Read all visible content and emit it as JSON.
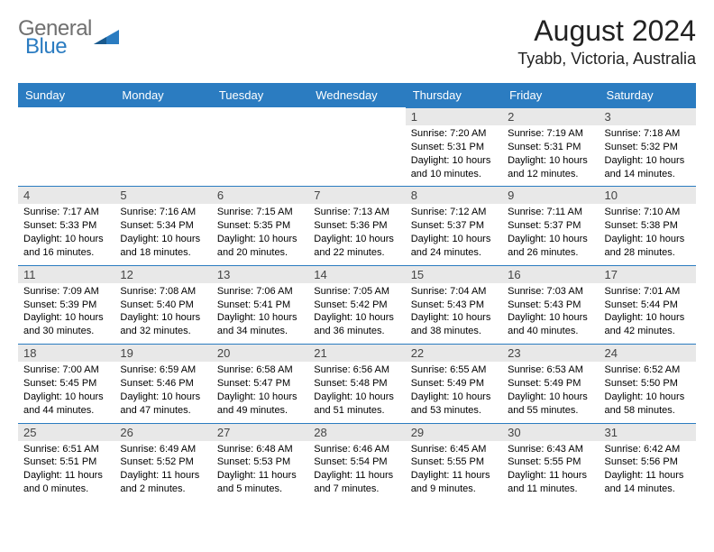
{
  "logo": {
    "line1": "General",
    "line2": "Blue"
  },
  "title": "August 2024",
  "location": "Tyabb, Victoria, Australia",
  "colors": {
    "header_bg": "#2b7cc1",
    "header_text": "#ffffff",
    "daynum_bg": "#e8e8e8",
    "row_border": "#2b7cc1",
    "body_text": "#000000",
    "logo_gray": "#707070",
    "logo_blue": "#2b7cc1"
  },
  "day_labels": [
    "Sunday",
    "Monday",
    "Tuesday",
    "Wednesday",
    "Thursday",
    "Friday",
    "Saturday"
  ],
  "weeks": [
    [
      null,
      null,
      null,
      null,
      {
        "n": "1",
        "sr": "7:20 AM",
        "ss": "5:31 PM",
        "dl": "10 hours and 10 minutes."
      },
      {
        "n": "2",
        "sr": "7:19 AM",
        "ss": "5:31 PM",
        "dl": "10 hours and 12 minutes."
      },
      {
        "n": "3",
        "sr": "7:18 AM",
        "ss": "5:32 PM",
        "dl": "10 hours and 14 minutes."
      }
    ],
    [
      {
        "n": "4",
        "sr": "7:17 AM",
        "ss": "5:33 PM",
        "dl": "10 hours and 16 minutes."
      },
      {
        "n": "5",
        "sr": "7:16 AM",
        "ss": "5:34 PM",
        "dl": "10 hours and 18 minutes."
      },
      {
        "n": "6",
        "sr": "7:15 AM",
        "ss": "5:35 PM",
        "dl": "10 hours and 20 minutes."
      },
      {
        "n": "7",
        "sr": "7:13 AM",
        "ss": "5:36 PM",
        "dl": "10 hours and 22 minutes."
      },
      {
        "n": "8",
        "sr": "7:12 AM",
        "ss": "5:37 PM",
        "dl": "10 hours and 24 minutes."
      },
      {
        "n": "9",
        "sr": "7:11 AM",
        "ss": "5:37 PM",
        "dl": "10 hours and 26 minutes."
      },
      {
        "n": "10",
        "sr": "7:10 AM",
        "ss": "5:38 PM",
        "dl": "10 hours and 28 minutes."
      }
    ],
    [
      {
        "n": "11",
        "sr": "7:09 AM",
        "ss": "5:39 PM",
        "dl": "10 hours and 30 minutes."
      },
      {
        "n": "12",
        "sr": "7:08 AM",
        "ss": "5:40 PM",
        "dl": "10 hours and 32 minutes."
      },
      {
        "n": "13",
        "sr": "7:06 AM",
        "ss": "5:41 PM",
        "dl": "10 hours and 34 minutes."
      },
      {
        "n": "14",
        "sr": "7:05 AM",
        "ss": "5:42 PM",
        "dl": "10 hours and 36 minutes."
      },
      {
        "n": "15",
        "sr": "7:04 AM",
        "ss": "5:43 PM",
        "dl": "10 hours and 38 minutes."
      },
      {
        "n": "16",
        "sr": "7:03 AM",
        "ss": "5:43 PM",
        "dl": "10 hours and 40 minutes."
      },
      {
        "n": "17",
        "sr": "7:01 AM",
        "ss": "5:44 PM",
        "dl": "10 hours and 42 minutes."
      }
    ],
    [
      {
        "n": "18",
        "sr": "7:00 AM",
        "ss": "5:45 PM",
        "dl": "10 hours and 44 minutes."
      },
      {
        "n": "19",
        "sr": "6:59 AM",
        "ss": "5:46 PM",
        "dl": "10 hours and 47 minutes."
      },
      {
        "n": "20",
        "sr": "6:58 AM",
        "ss": "5:47 PM",
        "dl": "10 hours and 49 minutes."
      },
      {
        "n": "21",
        "sr": "6:56 AM",
        "ss": "5:48 PM",
        "dl": "10 hours and 51 minutes."
      },
      {
        "n": "22",
        "sr": "6:55 AM",
        "ss": "5:49 PM",
        "dl": "10 hours and 53 minutes."
      },
      {
        "n": "23",
        "sr": "6:53 AM",
        "ss": "5:49 PM",
        "dl": "10 hours and 55 minutes."
      },
      {
        "n": "24",
        "sr": "6:52 AM",
        "ss": "5:50 PM",
        "dl": "10 hours and 58 minutes."
      }
    ],
    [
      {
        "n": "25",
        "sr": "6:51 AM",
        "ss": "5:51 PM",
        "dl": "11 hours and 0 minutes."
      },
      {
        "n": "26",
        "sr": "6:49 AM",
        "ss": "5:52 PM",
        "dl": "11 hours and 2 minutes."
      },
      {
        "n": "27",
        "sr": "6:48 AM",
        "ss": "5:53 PM",
        "dl": "11 hours and 5 minutes."
      },
      {
        "n": "28",
        "sr": "6:46 AM",
        "ss": "5:54 PM",
        "dl": "11 hours and 7 minutes."
      },
      {
        "n": "29",
        "sr": "6:45 AM",
        "ss": "5:55 PM",
        "dl": "11 hours and 9 minutes."
      },
      {
        "n": "30",
        "sr": "6:43 AM",
        "ss": "5:55 PM",
        "dl": "11 hours and 11 minutes."
      },
      {
        "n": "31",
        "sr": "6:42 AM",
        "ss": "5:56 PM",
        "dl": "11 hours and 14 minutes."
      }
    ]
  ],
  "labels": {
    "sunrise": "Sunrise: ",
    "sunset": "Sunset: ",
    "daylight": "Daylight: "
  }
}
